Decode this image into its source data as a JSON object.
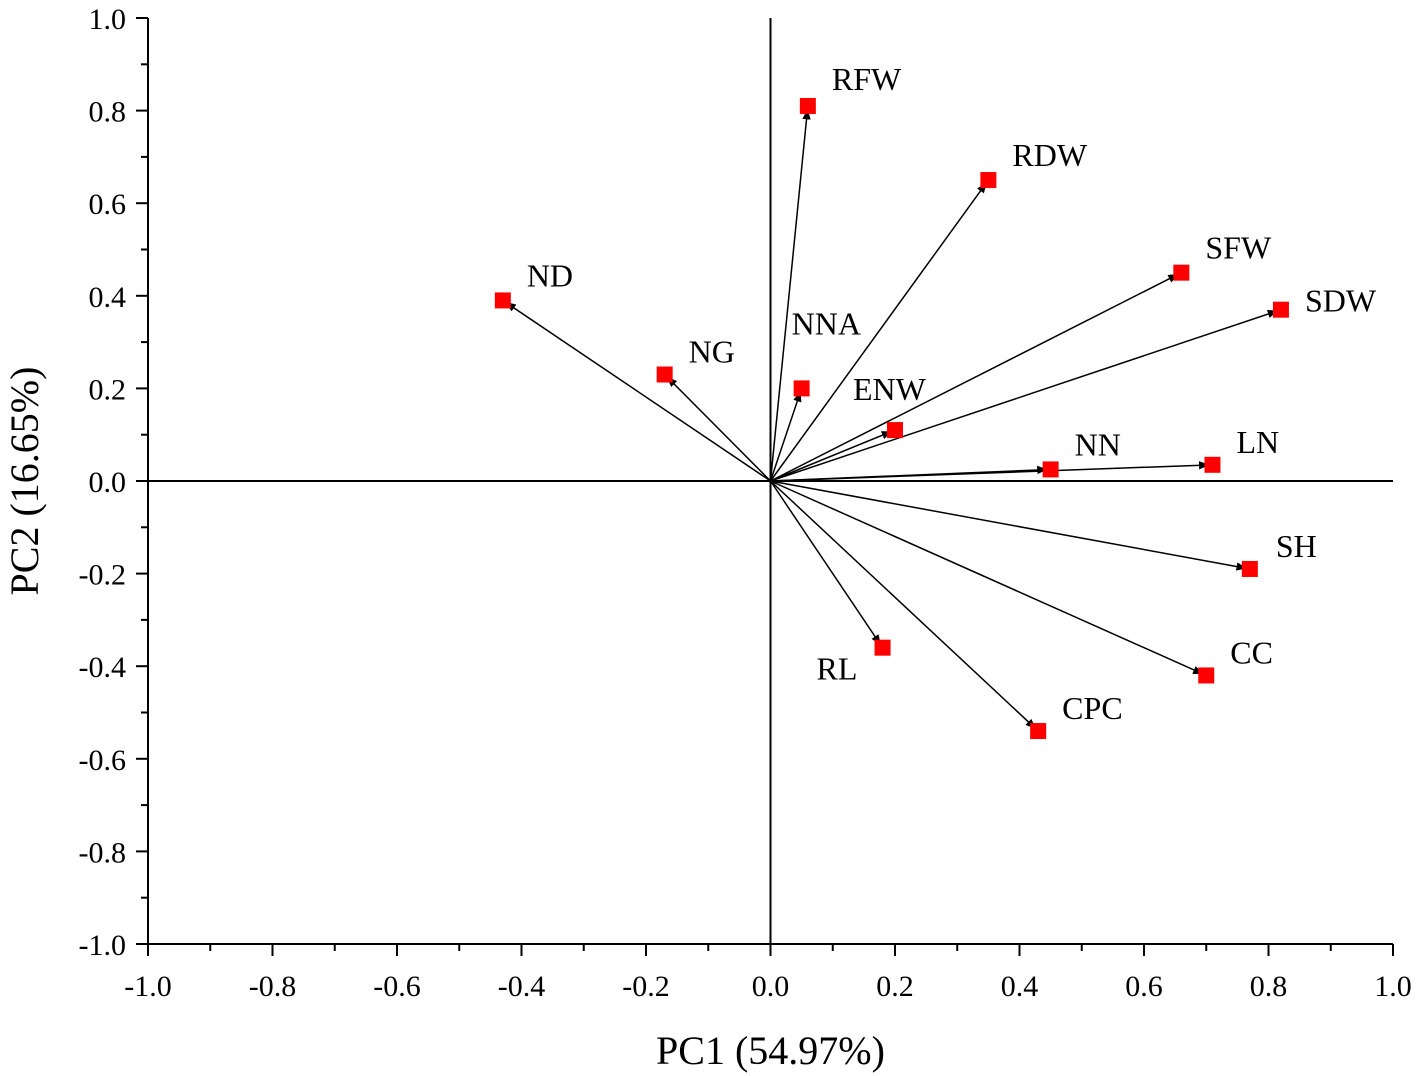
{
  "chart_data": {
    "type": "scatter",
    "title": "",
    "xlabel": "PC1 (54.97%)",
    "ylabel": "PC2 (16.65%)",
    "xlim": [
      -1.0,
      1.0
    ],
    "ylim": [
      -1.0,
      1.0
    ],
    "xticks": [
      "-1.0",
      "-0.8",
      "-0.6",
      "-0.4",
      "-0.2",
      "0.0",
      "0.2",
      "0.4",
      "0.6",
      "0.8",
      "1.0"
    ],
    "yticks": [
      "1.0",
      "0.8",
      "0.6",
      "0.4",
      "0.2",
      "0.0",
      "-0.2",
      "-0.4",
      "-0.6",
      "-0.8",
      "-1.0"
    ],
    "grid": false,
    "marker_color": "#ff0000",
    "arrows_from_origin": true,
    "points": [
      {
        "label": "RFW",
        "x": 0.06,
        "y": 0.81
      },
      {
        "label": "RDW",
        "x": 0.35,
        "y": 0.65
      },
      {
        "label": "SFW",
        "x": 0.66,
        "y": 0.45
      },
      {
        "label": "SDW",
        "x": 0.82,
        "y": 0.37
      },
      {
        "label": "ND",
        "x": -0.43,
        "y": 0.39
      },
      {
        "label": "NG",
        "x": -0.17,
        "y": 0.23
      },
      {
        "label": "NNA",
        "x": 0.05,
        "y": 0.2
      },
      {
        "label": "ENW",
        "x": 0.2,
        "y": 0.11
      },
      {
        "label": "NN",
        "x": 0.45,
        "y": 0.025
      },
      {
        "label": "LN",
        "x": 0.71,
        "y": 0.035
      },
      {
        "label": "SH",
        "x": 0.77,
        "y": -0.19
      },
      {
        "label": "CC",
        "x": 0.7,
        "y": -0.42
      },
      {
        "label": "RL",
        "x": 0.18,
        "y": -0.36
      },
      {
        "label": "CPC",
        "x": 0.43,
        "y": -0.54
      }
    ]
  }
}
